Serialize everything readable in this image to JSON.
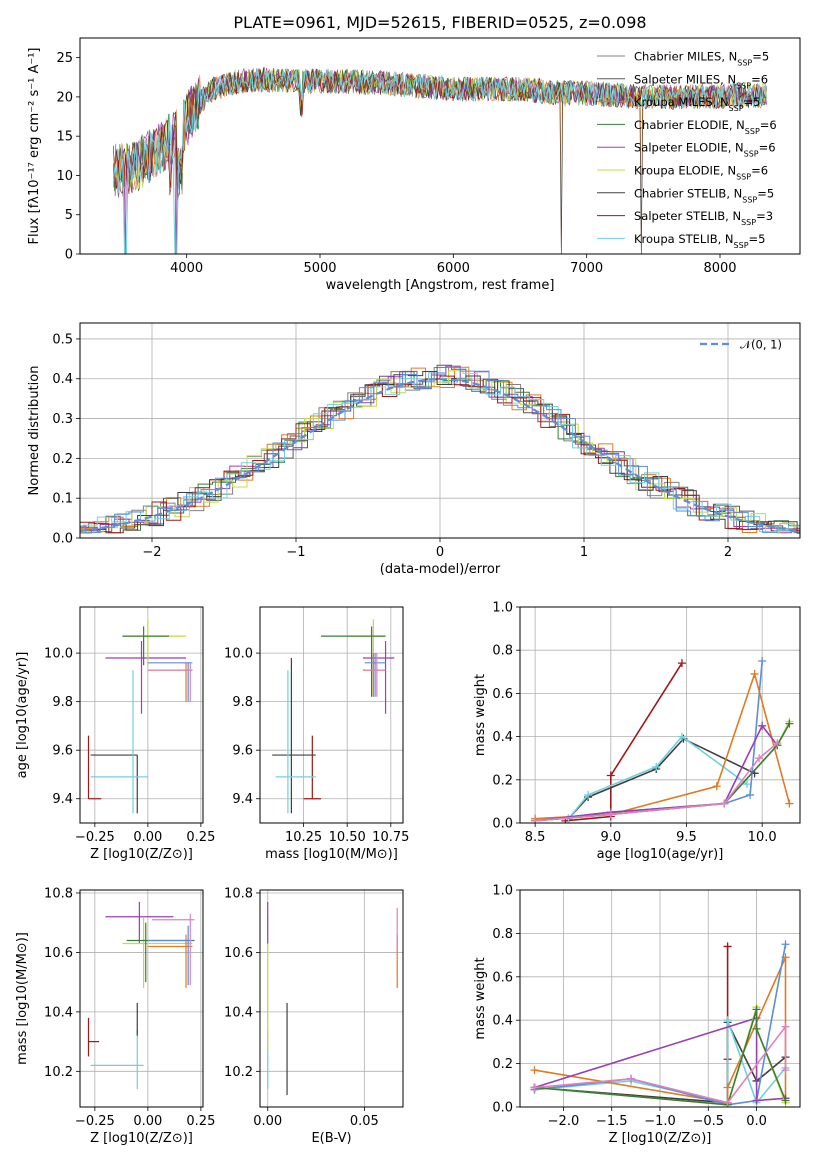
{
  "chart_data": [
    {
      "id": "spectrum",
      "type": "line",
      "title": "PLATE=0961, MJD=52615, FIBERID=0525, z=0.098",
      "xlabel": "wavelength [Angstrom, rest frame]",
      "ylabel": "Flux [f$_\\lambda$10$^{-17}$ erg cm$^{-2}$ s$^{-1}$ A$^{-1}$]",
      "ylabel_text": "Flux [fλ10⁻¹⁷ erg cm⁻² s⁻¹ A⁻¹]",
      "xlim": [
        3200,
        8600
      ],
      "ylim": [
        0,
        27.5
      ],
      "xticks": [
        4000,
        5000,
        6000,
        7000,
        8000
      ],
      "yticks": [
        0,
        5,
        10,
        15,
        20,
        25
      ],
      "legend_position": "top-right",
      "series": [
        {
          "name": "Chabrier MILES, N_SSP=5",
          "name_html": "Chabrier MILES, N<tspan baseline-shift=\"sub\" font-size=\"8\">SSP</tspan>=5",
          "color": "#808080"
        },
        {
          "name": "Salpeter MILES, N_SSP=6",
          "name_html": "Salpeter MILES, N<tspan baseline-shift=\"sub\" font-size=\"8\">SSP</tspan>=6",
          "color": "#5a5a5a"
        },
        {
          "name": "Kroupa MILES, N_SSP=5",
          "name_html": "Kroupa MILES, N<tspan baseline-shift=\"sub\" font-size=\"8\">SSP</tspan>=5",
          "color": "#e07b20"
        },
        {
          "name": "Chabrier ELODIE, N_SSP=6",
          "name_html": "Chabrier ELODIE, N<tspan baseline-shift=\"sub\" font-size=\"8\">SSP</tspan>=6",
          "color": "#3a7d3a"
        },
        {
          "name": "Salpeter ELODIE, N_SSP=6",
          "name_html": "Salpeter ELODIE, N<tspan baseline-shift=\"sub\" font-size=\"8\">SSP</tspan>=6",
          "color": "#9b3fb5"
        },
        {
          "name": "Kroupa ELODIE, N_SSP=6",
          "name_html": "Kroupa ELODIE, N<tspan baseline-shift=\"sub\" font-size=\"8\">SSP</tspan>=6",
          "color": "#c8d840"
        },
        {
          "name": "Chabrier STELIB, N_SSP=5",
          "name_html": "Chabrier STELIB, N<tspan baseline-shift=\"sub\" font-size=\"8\">SSP</tspan>=5",
          "color": "#404040"
        },
        {
          "name": "Salpeter STELIB, N_SSP=3",
          "name_html": "Salpeter STELIB, N<tspan baseline-shift=\"sub\" font-size=\"8\">SSP</tspan>=3",
          "color": "#a01818"
        },
        {
          "name": "Kroupa STELIB, N_SSP=5",
          "name_html": "Kroupa STELIB, N<tspan baseline-shift=\"sub\" font-size=\"8\">SSP</tspan>=5",
          "color": "#70d0e0"
        }
      ],
      "continuum": [
        [
          3450,
          10.5
        ],
        [
          3600,
          11.0
        ],
        [
          3800,
          13.5
        ],
        [
          3950,
          15.5
        ],
        [
          4050,
          18.5
        ],
        [
          4200,
          21.0
        ],
        [
          4400,
          22.0
        ],
        [
          4600,
          22.2
        ],
        [
          4800,
          22.0
        ],
        [
          5000,
          22.0
        ],
        [
          5200,
          22.0
        ],
        [
          5400,
          21.8
        ],
        [
          5600,
          21.6
        ],
        [
          5800,
          21.3
        ],
        [
          6000,
          21.0
        ],
        [
          6200,
          21.0
        ],
        [
          6500,
          21.0
        ],
        [
          6800,
          20.5
        ],
        [
          7000,
          20.5
        ],
        [
          7400,
          20.0
        ],
        [
          7800,
          20.0
        ],
        [
          8200,
          20.2
        ],
        [
          8350,
          20.2
        ]
      ],
      "dips": [
        [
          3540,
          0
        ],
        [
          3920,
          0
        ],
        [
          6810,
          0
        ],
        [
          7410,
          0
        ]
      ]
    },
    {
      "id": "residuals",
      "type": "histogram",
      "xlabel": "(data-model)/error",
      "ylabel": "Normed distribution",
      "xlim": [
        -2.5,
        2.5
      ],
      "ylim": [
        0,
        0.54
      ],
      "xticks": [
        -2,
        -1,
        0,
        1,
        2
      ],
      "yticks": [
        0.0,
        0.1,
        0.2,
        0.3,
        0.4,
        0.5
      ],
      "reference": {
        "name": "𝒩(0, 1)",
        "color": "#5b8fd8",
        "style": "dashed"
      },
      "legend_position": "top-right",
      "bin_width": 0.1
    },
    {
      "id": "age_vs_Z",
      "type": "errorbar",
      "xlabel": "Z [log10(Z/Z⊙)]",
      "ylabel": "age [log10(age/yr)]",
      "xlim": [
        -0.32,
        0.26
      ],
      "ylim": [
        9.3,
        10.19
      ],
      "xticks": [
        -0.25,
        0.0,
        0.25
      ],
      "yticks": [
        9.4,
        9.6,
        9.8,
        10.0
      ],
      "points": [
        {
          "x": -0.28,
          "y": 9.4,
          "xlo": -0.28,
          "xhi": -0.22,
          "ylo": 9.4,
          "yhi": 9.66,
          "color": "#a01818"
        },
        {
          "x": -0.05,
          "y": 9.58,
          "xlo": -0.27,
          "xhi": -0.05,
          "ylo": 9.34,
          "yhi": 9.58,
          "color": "#404040"
        },
        {
          "x": -0.07,
          "y": 9.49,
          "xlo": -0.27,
          "xhi": 0.0,
          "ylo": 9.34,
          "yhi": 9.93,
          "color": "#70d0e0"
        },
        {
          "x": -0.03,
          "y": 9.98,
          "xlo": -0.2,
          "xhi": 0.18,
          "ylo": 9.75,
          "yhi": 10.05,
          "color": "#9b3fb5"
        },
        {
          "x": 0.0,
          "y": 10.07,
          "xlo": -0.12,
          "xhi": 0.18,
          "ylo": 9.95,
          "yhi": 10.14,
          "color": "#c8d840"
        },
        {
          "x": -0.02,
          "y": 10.07,
          "xlo": -0.12,
          "xhi": 0.1,
          "ylo": 9.95,
          "yhi": 10.11,
          "color": "#3a7d3a"
        },
        {
          "x": 0.18,
          "y": 9.93,
          "xlo": 0.0,
          "xhi": 0.21,
          "ylo": 9.8,
          "yhi": 9.96,
          "color": "#e07b20"
        },
        {
          "x": 0.19,
          "y": 9.96,
          "xlo": 0.0,
          "xhi": 0.21,
          "ylo": 9.8,
          "yhi": 9.96,
          "color": "#5b8fd8"
        },
        {
          "x": 0.2,
          "y": 9.93,
          "xlo": 0.0,
          "xhi": 0.21,
          "ylo": 9.8,
          "yhi": 9.96,
          "color": "#e080c0"
        }
      ]
    },
    {
      "id": "age_vs_mass",
      "type": "errorbar",
      "xlabel": "mass [log10(M/M⊙)]",
      "ylabel": "",
      "xlim": [
        10.0,
        10.82
      ],
      "ylim": [
        9.3,
        10.19
      ],
      "xticks": [
        10.25,
        10.5,
        10.75
      ],
      "yticks": [
        9.4,
        9.6,
        9.8,
        10.0
      ],
      "points": [
        {
          "x": 10.3,
          "y": 9.4,
          "xlo": 10.25,
          "xhi": 10.35,
          "ylo": 9.4,
          "yhi": 9.66,
          "color": "#a01818"
        },
        {
          "x": 10.18,
          "y": 9.58,
          "xlo": 10.07,
          "xhi": 10.32,
          "ylo": 9.34,
          "yhi": 9.98,
          "color": "#404040"
        },
        {
          "x": 10.16,
          "y": 9.49,
          "xlo": 10.09,
          "xhi": 10.32,
          "ylo": 9.34,
          "yhi": 9.93,
          "color": "#70d0e0"
        },
        {
          "x": 10.72,
          "y": 9.98,
          "xlo": 10.59,
          "xhi": 10.77,
          "ylo": 9.75,
          "yhi": 10.05,
          "color": "#9b3fb5"
        },
        {
          "x": 10.65,
          "y": 10.07,
          "xlo": 10.5,
          "xhi": 10.72,
          "ylo": 9.82,
          "yhi": 10.14,
          "color": "#c8d840"
        },
        {
          "x": 10.64,
          "y": 10.07,
          "xlo": 10.35,
          "xhi": 10.72,
          "ylo": 9.82,
          "yhi": 10.11,
          "color": "#3a7d3a"
        },
        {
          "x": 10.65,
          "y": 9.93,
          "xlo": 10.59,
          "xhi": 10.72,
          "ylo": 9.82,
          "yhi": 10.0,
          "color": "#e07b20"
        },
        {
          "x": 10.66,
          "y": 9.96,
          "xlo": 10.6,
          "xhi": 10.72,
          "ylo": 9.82,
          "yhi": 10.0,
          "color": "#5b8fd8"
        },
        {
          "x": 10.67,
          "y": 9.93,
          "xlo": 10.6,
          "xhi": 10.72,
          "ylo": 9.82,
          "yhi": 10.0,
          "color": "#e080c0"
        }
      ]
    },
    {
      "id": "mass_weight_vs_age",
      "type": "line",
      "xlabel": "age [log10(age/yr)]",
      "ylabel": "mass weight",
      "xlim": [
        8.4,
        10.25
      ],
      "ylim": [
        0.0,
        1.0
      ],
      "xticks": [
        8.5,
        9.0,
        9.5,
        10.0
      ],
      "yticks": [
        0.0,
        0.2,
        0.4,
        0.6,
        0.8,
        1.0
      ],
      "series": [
        {
          "color": "#a01818",
          "x": [
            8.7,
            9.0,
            9.0,
            9.47
          ],
          "y": [
            0.01,
            0.03,
            0.22,
            0.74
          ]
        },
        {
          "color": "#404040",
          "x": [
            8.72,
            8.85,
            9.3,
            9.48,
            9.95
          ],
          "y": [
            0.02,
            0.12,
            0.25,
            0.39,
            0.23
          ]
        },
        {
          "color": "#70d0e0",
          "x": [
            8.72,
            8.85,
            9.3,
            9.47,
            9.9
          ],
          "y": [
            0.02,
            0.13,
            0.26,
            0.4,
            0.18
          ]
        },
        {
          "color": "#e07b20",
          "x": [
            8.5,
            9.0,
            9.7,
            9.95,
            10.18
          ],
          "y": [
            0.02,
            0.04,
            0.17,
            0.69,
            0.09
          ]
        },
        {
          "color": "#5b8fd8",
          "x": [
            8.5,
            9.0,
            9.75,
            9.92,
            10.0
          ],
          "y": [
            0.01,
            0.05,
            0.09,
            0.13,
            0.75
          ]
        },
        {
          "color": "#9b3fb5",
          "x": [
            8.5,
            9.0,
            9.75,
            10.0,
            10.1
          ],
          "y": [
            0.01,
            0.05,
            0.09,
            0.45,
            0.36
          ]
        },
        {
          "color": "#c8d840",
          "x": [
            8.5,
            9.0,
            9.75,
            10.1,
            10.18
          ],
          "y": [
            0.01,
            0.04,
            0.09,
            0.36,
            0.47
          ]
        },
        {
          "color": "#3a7d3a",
          "x": [
            8.5,
            9.0,
            9.75,
            10.1,
            10.18
          ],
          "y": [
            0.01,
            0.04,
            0.09,
            0.36,
            0.46
          ]
        },
        {
          "color": "#e080c0",
          "x": [
            8.5,
            9.0,
            9.75,
            9.98,
            10.1
          ],
          "y": [
            0.01,
            0.04,
            0.09,
            0.3,
            0.37
          ]
        }
      ]
    },
    {
      "id": "mass_vs_Z",
      "type": "errorbar",
      "xlabel": "Z [log10(Z/Z⊙)]",
      "ylabel": "mass [log10(M/M⊙)]",
      "xlim": [
        -0.32,
        0.26
      ],
      "ylim": [
        10.08,
        10.81
      ],
      "xticks": [
        -0.25,
        0.0,
        0.25
      ],
      "yticks": [
        10.2,
        10.4,
        10.6,
        10.8
      ],
      "points": [
        {
          "x": -0.28,
          "y": 10.3,
          "xlo": -0.28,
          "xhi": -0.23,
          "ylo": 10.25,
          "yhi": 10.38,
          "color": "#a01818"
        },
        {
          "x": -0.05,
          "y": 10.22,
          "xlo": -0.27,
          "xhi": -0.02,
          "ylo": 10.14,
          "yhi": 10.34,
          "color": "#70d0e0"
        },
        {
          "x": -0.05,
          "y": 10.35,
          "xlo": -0.05,
          "xhi": -0.05,
          "ylo": 10.32,
          "yhi": 10.43,
          "color": "#404040"
        },
        {
          "x": -0.04,
          "y": 10.72,
          "xlo": -0.2,
          "xhi": 0.12,
          "ylo": 10.63,
          "yhi": 10.77,
          "color": "#9b3fb5"
        },
        {
          "x": -0.02,
          "y": 10.63,
          "xlo": -0.12,
          "xhi": 0.21,
          "ylo": 10.48,
          "yhi": 10.72,
          "color": "#c8d840"
        },
        {
          "x": -0.01,
          "y": 10.64,
          "xlo": -0.1,
          "xhi": 0.22,
          "ylo": 10.5,
          "yhi": 10.7,
          "color": "#3a7d3a"
        },
        {
          "x": 0.18,
          "y": 10.62,
          "xlo": 0.0,
          "xhi": 0.21,
          "ylo": 10.48,
          "yhi": 10.66,
          "color": "#e07b20"
        },
        {
          "x": 0.19,
          "y": 10.64,
          "xlo": 0.0,
          "xhi": 0.21,
          "ylo": 10.49,
          "yhi": 10.69,
          "color": "#5b8fd8"
        },
        {
          "x": 0.2,
          "y": 10.71,
          "xlo": 0.02,
          "xhi": 0.22,
          "ylo": 10.49,
          "yhi": 10.73,
          "color": "#e080c0"
        }
      ]
    },
    {
      "id": "mass_vs_EBV",
      "type": "errorbar",
      "xlabel": "E(B-V)",
      "ylabel": "",
      "xlim": [
        -0.004,
        0.07
      ],
      "ylim": [
        10.08,
        10.81
      ],
      "xticks": [
        0.0,
        0.05
      ],
      "yticks": [
        10.2,
        10.4,
        10.6,
        10.8
      ],
      "points": [
        {
          "x": 0.0,
          "y": 10.22,
          "xlo": 0.0,
          "xhi": 0.0,
          "ylo": 10.14,
          "yhi": 10.34,
          "color": "#70d0e0"
        },
        {
          "x": 0.0,
          "y": 10.4,
          "xlo": 0.0,
          "xhi": 0.0,
          "ylo": 10.27,
          "yhi": 10.72,
          "color": "#c8d840"
        },
        {
          "x": 0.0,
          "y": 10.7,
          "xlo": 0.0,
          "xhi": 0.0,
          "ylo": 10.63,
          "yhi": 10.77,
          "color": "#9b3fb5"
        },
        {
          "x": 0.01,
          "y": 10.3,
          "xlo": 0.01,
          "xhi": 0.01,
          "ylo": 10.12,
          "yhi": 10.43,
          "color": "#404040"
        },
        {
          "x": 0.067,
          "y": 10.62,
          "xlo": 0.067,
          "xhi": 0.067,
          "ylo": 10.48,
          "yhi": 10.66,
          "color": "#e07b20"
        },
        {
          "x": 0.067,
          "y": 10.7,
          "xlo": 0.067,
          "xhi": 0.067,
          "ylo": 10.6,
          "yhi": 10.75,
          "color": "#e080c0"
        }
      ]
    },
    {
      "id": "mass_weight_vs_Z",
      "type": "line",
      "xlabel": "Z [log10(Z/Z⊙)]",
      "ylabel": "mass weight",
      "xlim": [
        -2.45,
        0.45
      ],
      "ylim": [
        0.0,
        1.0
      ],
      "xticks": [
        -2.0,
        -1.5,
        -1.0,
        -0.5,
        0.0
      ],
      "yticks": [
        0.0,
        0.2,
        0.4,
        0.6,
        0.8,
        1.0
      ],
      "series": [
        {
          "color": "#a01818",
          "x": [
            -0.3,
            -0.3,
            -0.3
          ],
          "y": [
            0.01,
            0.22,
            0.74
          ]
        },
        {
          "color": "#404040",
          "x": [
            -2.3,
            -0.3,
            -0.3,
            0.0,
            0.3
          ],
          "y": [
            0.09,
            0.02,
            0.39,
            0.12,
            0.23
          ]
        },
        {
          "color": "#70d0e0",
          "x": [
            -2.3,
            -1.3,
            -0.3,
            -0.3,
            0.0,
            0.3
          ],
          "y": [
            0.08,
            0.12,
            0.02,
            0.4,
            0.02,
            0.18
          ]
        },
        {
          "color": "#e07b20",
          "x": [
            -2.3,
            -0.3,
            -0.3,
            0.3,
            0.3
          ],
          "y": [
            0.17,
            0.02,
            0.09,
            0.69,
            0.04
          ]
        },
        {
          "color": "#5b8fd8",
          "x": [
            -2.3,
            -1.3,
            -0.3,
            0.0,
            0.3
          ],
          "y": [
            0.08,
            0.13,
            0.01,
            0.03,
            0.75
          ]
        },
        {
          "color": "#9b3fb5",
          "x": [
            -2.3,
            0.0,
            0.0,
            0.3
          ],
          "y": [
            0.09,
            0.41,
            0.03,
            0.04
          ]
        },
        {
          "color": "#c8d840",
          "x": [
            -2.3,
            -0.3,
            0.0,
            0.0,
            0.3
          ],
          "y": [
            0.09,
            0.01,
            0.46,
            0.36,
            0.02
          ]
        },
        {
          "color": "#3a7d3a",
          "x": [
            -2.3,
            -0.3,
            0.0,
            0.0,
            0.3
          ],
          "y": [
            0.09,
            0.01,
            0.45,
            0.36,
            0.03
          ]
        },
        {
          "color": "#e080c0",
          "x": [
            -2.3,
            -1.3,
            -0.3,
            0.3,
            0.3
          ],
          "y": [
            0.09,
            0.13,
            0.02,
            0.37,
            0.17
          ]
        }
      ]
    }
  ]
}
